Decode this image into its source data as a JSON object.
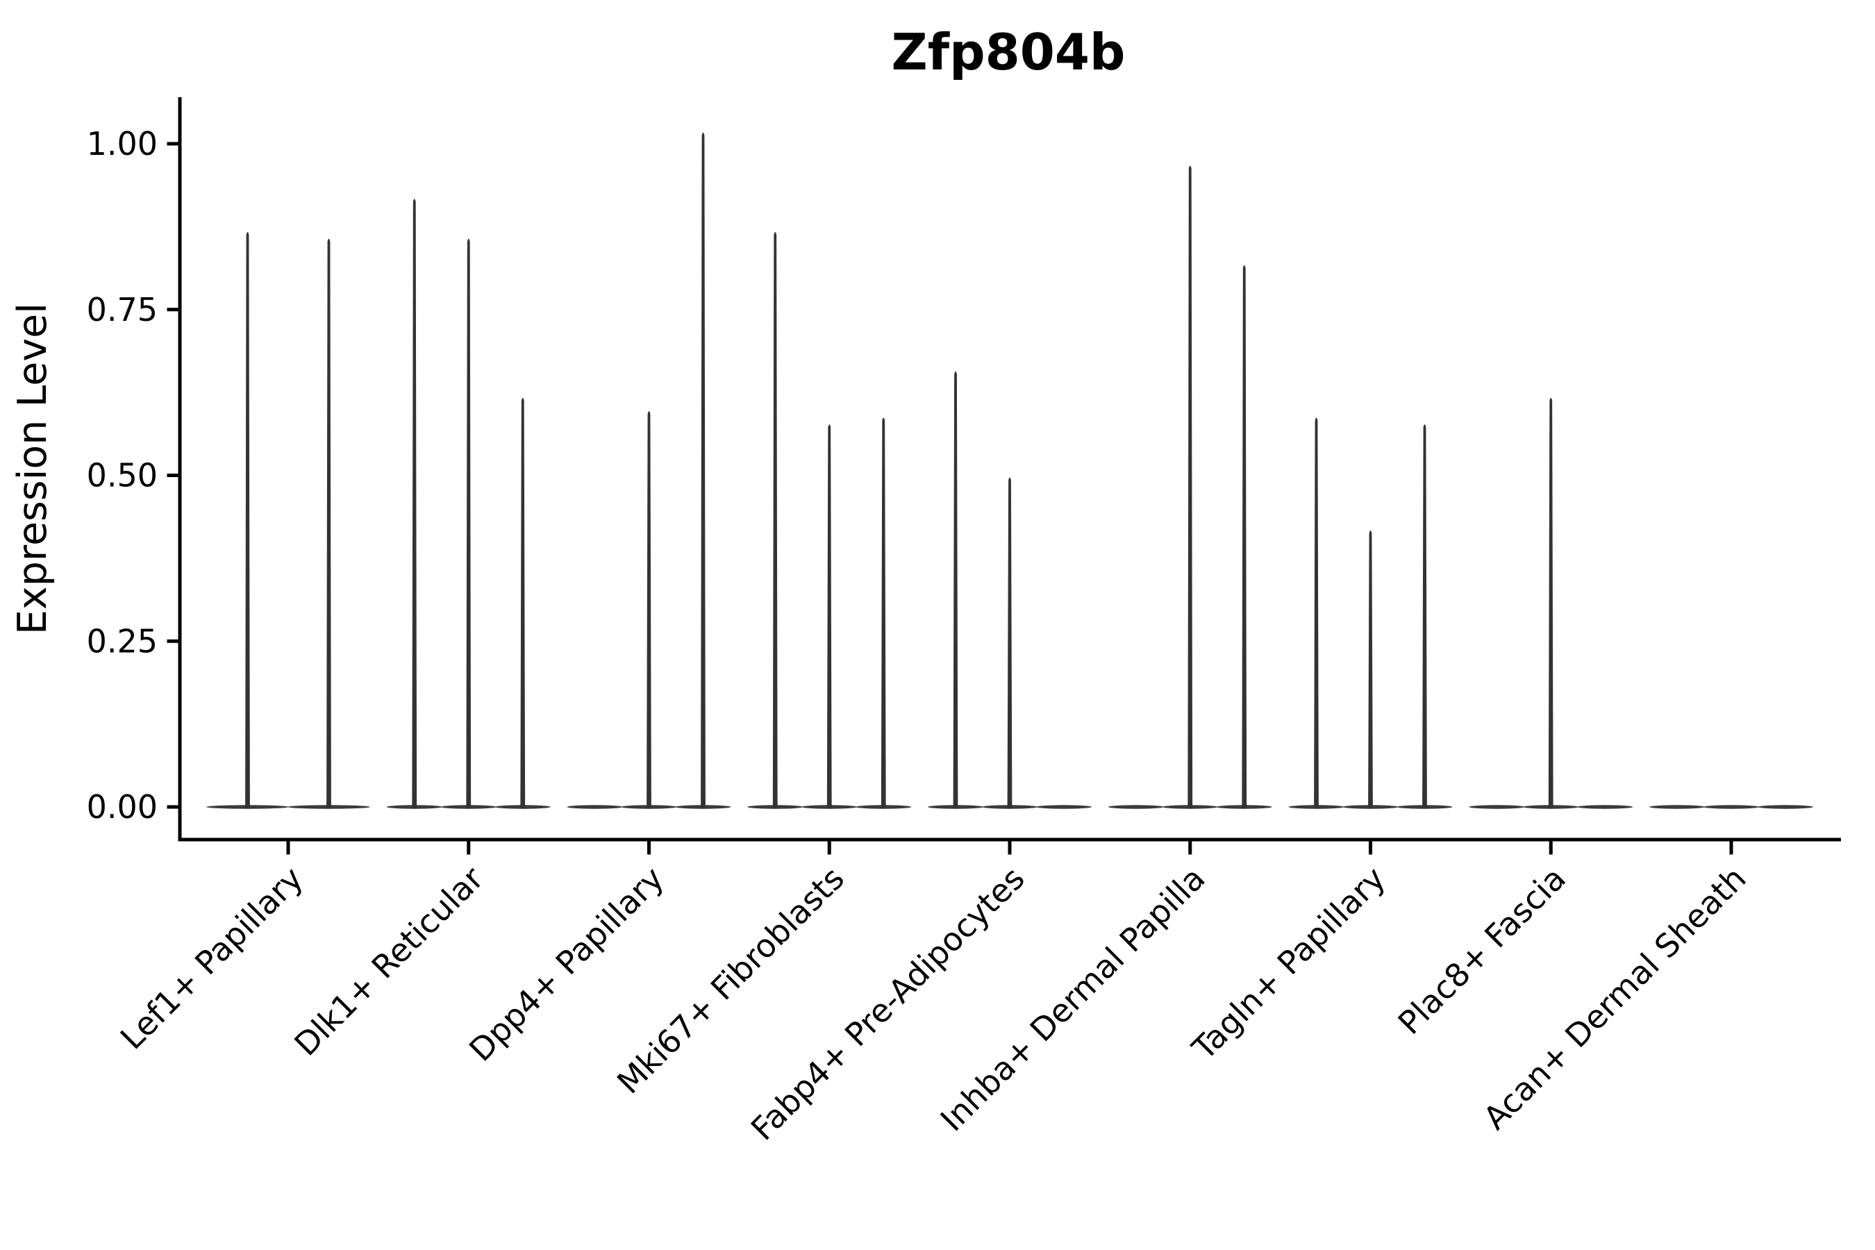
{
  "chart_data": {
    "type": "violin",
    "title": "Zfp804b",
    "ylabel": "Expression Level",
    "xlabel": "",
    "yticks": [
      0.0,
      0.25,
      0.5,
      0.75,
      1.0
    ],
    "ytick_labels": [
      "0.00",
      "0.25",
      "0.50",
      "0.75",
      "1.00"
    ],
    "ylim": [
      -0.05,
      1.07
    ],
    "grid": false,
    "legend": "none",
    "x_tick_rotation_deg": 45,
    "categories": [
      "Lef1+ Papillary",
      "Dlk1+ Reticular",
      "Dpp4+ Papillary",
      "Mki67+ Fibroblasts",
      "Fabp4+ Pre-Adipocytes",
      "Inhba+ Dermal Papilla",
      "Tagln+ Papillary",
      "Plac8+ Fascia",
      "Acan+ Dermal Sheath"
    ],
    "violins": [
      {
        "category": "Lef1+ Papillary",
        "maxima": [
          0.87,
          0.86
        ]
      },
      {
        "category": "Dlk1+ Reticular",
        "maxima": [
          0.92,
          0.86,
          0.62
        ]
      },
      {
        "category": "Dpp4+ Papillary",
        "maxima": [
          0,
          0.6,
          1.02
        ]
      },
      {
        "category": "Mki67+ Fibroblasts",
        "maxima": [
          0.87,
          0.58,
          0.59
        ]
      },
      {
        "category": "Fabp4+ Pre-Adipocytes",
        "maxima": [
          0.66,
          0.5,
          0
        ]
      },
      {
        "category": "Inhba+ Dermal Papilla",
        "maxima": [
          0,
          0.97,
          0.82
        ]
      },
      {
        "category": "Tagln+ Papillary",
        "maxima": [
          0.59,
          0.42,
          0.58
        ]
      },
      {
        "category": "Plac8+ Fascia",
        "maxima": [
          0,
          0.62,
          0
        ]
      },
      {
        "category": "Acan+ Dermal Sheath",
        "maxima": [
          0,
          0,
          0
        ]
      }
    ],
    "violin_note": "Each category holds 2-3 thin violins: a flat lens at y=0 plus a narrow spike rising to the listed maximum; 0 means flat violin with no spike.",
    "colors": {
      "violin_fill": "#333333",
      "pancake_fill": "#3a3a3a",
      "axis": "#000000",
      "text": "#000000",
      "background": "#ffffff"
    }
  }
}
